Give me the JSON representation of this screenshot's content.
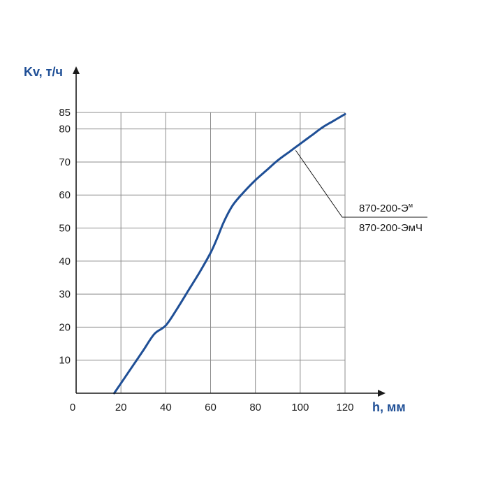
{
  "chart_data": {
    "type": "line",
    "title": "",
    "xlabel": "h, мм",
    "ylabel": "Kv, т/ч",
    "xlim": [
      0,
      120
    ],
    "ylim": [
      0,
      85
    ],
    "x_ticks": [
      0,
      20,
      40,
      60,
      80,
      100,
      120
    ],
    "y_ticks": [
      10,
      20,
      30,
      40,
      50,
      60,
      70,
      80,
      85
    ],
    "grid": true,
    "series": [
      {
        "x": [
          17,
          20,
          25,
          30,
          35,
          40,
          45,
          50,
          55,
          60,
          63,
          66,
          70,
          75,
          80,
          85,
          90,
          95,
          100,
          105,
          110,
          115,
          120
        ],
        "y": [
          0,
          3,
          8,
          13,
          18,
          20.5,
          25.5,
          31,
          36.5,
          42.5,
          47,
          52,
          57,
          61,
          64.5,
          67.5,
          70.5,
          73,
          75.5,
          78,
          80.5,
          82.5,
          84.5
        ]
      }
    ],
    "annotation": {
      "label_top": "870-200-Э",
      "label_top_sup": "м",
      "label_bottom": "870-200-ЭмЧ",
      "point": [
        98,
        73.5
      ]
    },
    "colors": {
      "series": "#1f4f96",
      "axis_title": "#1f4f96",
      "grid": "#8c8c8c",
      "axis": "#1a1a1a"
    }
  }
}
